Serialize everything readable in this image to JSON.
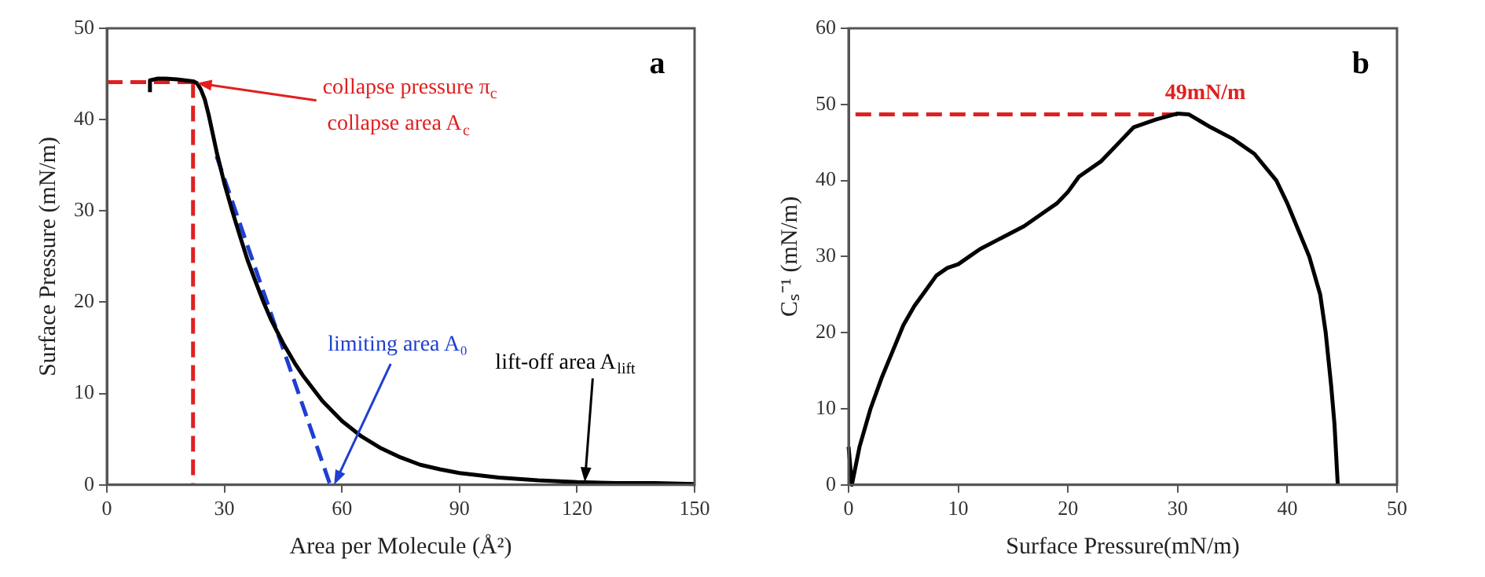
{
  "chart_data": [
    {
      "type": "line",
      "xlabel": "Area per Molecule (Å²)",
      "ylabel": "Surface Pressure (mN/m)",
      "xlim": [
        0,
        150
      ],
      "xticks": [
        0,
        30,
        60,
        90,
        120,
        150
      ],
      "ylim": [
        0,
        50
      ],
      "yticks": [
        0,
        10,
        20,
        30,
        40,
        50
      ],
      "grid": false,
      "legend": false,
      "marker": "none",
      "series": [
        {
          "color": "#000000",
          "line_style": "solid",
          "x": [
            11,
            11,
            13,
            15,
            18,
            20,
            22,
            23,
            24,
            25,
            26,
            27,
            28,
            30,
            32,
            34,
            36,
            38,
            40,
            42,
            45,
            48,
            50,
            55,
            60,
            65,
            70,
            75,
            80,
            85,
            90,
            100,
            110,
            120,
            130,
            140,
            150
          ],
          "values": [
            43,
            44.3,
            44.5,
            44.5,
            44.4,
            44.3,
            44.2,
            44,
            43.3,
            42.2,
            40.5,
            38.5,
            36.5,
            33,
            30,
            27.2,
            24.5,
            22.2,
            20,
            18,
            15.5,
            13.3,
            12,
            9.2,
            7,
            5.3,
            4,
            3,
            2.2,
            1.7,
            1.3,
            0.8,
            0.5,
            0.3,
            0.2,
            0.2,
            0.1
          ]
        },
        {
          "color": "#1f3fd0",
          "line_style": "dashed",
          "x": [
            28,
            57
          ],
          "values": [
            36,
            0
          ]
        },
        {
          "color": "#e02020",
          "line_style": "dashed",
          "x": [
            0,
            23
          ],
          "values": [
            44.1,
            44.1
          ]
        },
        {
          "color": "#e02020",
          "line_style": "dashed",
          "x": [
            22,
            22
          ],
          "values": [
            44.1,
            0
          ]
        }
      ],
      "annotations": [
        "a",
        {
          "text": "collapse pressure π$_{c}$",
          "x": 23,
          "y": 44
        },
        "collapse area A$_{c}$",
        {
          "text": "limiting area A₀",
          "x": 58,
          "y": 0
        },
        {
          "text": "lift-off area A$_{lift}$",
          "x": 122,
          "y": 0.3
        }
      ]
    },
    {
      "type": "line",
      "xlabel": "Surface Pressure(mN/m)",
      "ylabel": "Cₛ⁻¹ (mN/m)",
      "xlim": [
        0,
        50
      ],
      "xticks": [
        0,
        10,
        20,
        30,
        40,
        50
      ],
      "ylim": [
        0,
        60
      ],
      "yticks": [
        0,
        10,
        20,
        30,
        40,
        50,
        60
      ],
      "grid": false,
      "legend": false,
      "marker": "none",
      "series": [
        {
          "color": "#000000",
          "line_style": "solid",
          "x": [
            0,
            0.3,
            1,
            2,
            3,
            4,
            5,
            6,
            7,
            8,
            9,
            10,
            11,
            12,
            14,
            16,
            18,
            19,
            20,
            21,
            23,
            25,
            26,
            28,
            30,
            31,
            33,
            35,
            37,
            39,
            40,
            41,
            42,
            43,
            43.5,
            44,
            44.3,
            44.6
          ],
          "values": [
            5,
            0,
            5,
            10,
            14,
            17.5,
            21,
            23.5,
            25.5,
            27.5,
            28.5,
            29,
            30,
            31,
            32.5,
            34,
            36,
            37,
            38.5,
            40.5,
            42.5,
            45.5,
            47,
            48,
            48.8,
            48.7,
            47,
            45.5,
            43.5,
            40,
            37,
            33.5,
            30,
            25,
            20,
            13,
            8,
            0
          ]
        },
        {
          "color": "#e02020",
          "line_style": "dashed",
          "x": [
            30,
            0
          ],
          "values": [
            48.7,
            48.7
          ]
        }
      ],
      "annotations": [
        "b",
        {
          "text": "49mN/m",
          "x": 30,
          "y": 49
        }
      ]
    }
  ]
}
